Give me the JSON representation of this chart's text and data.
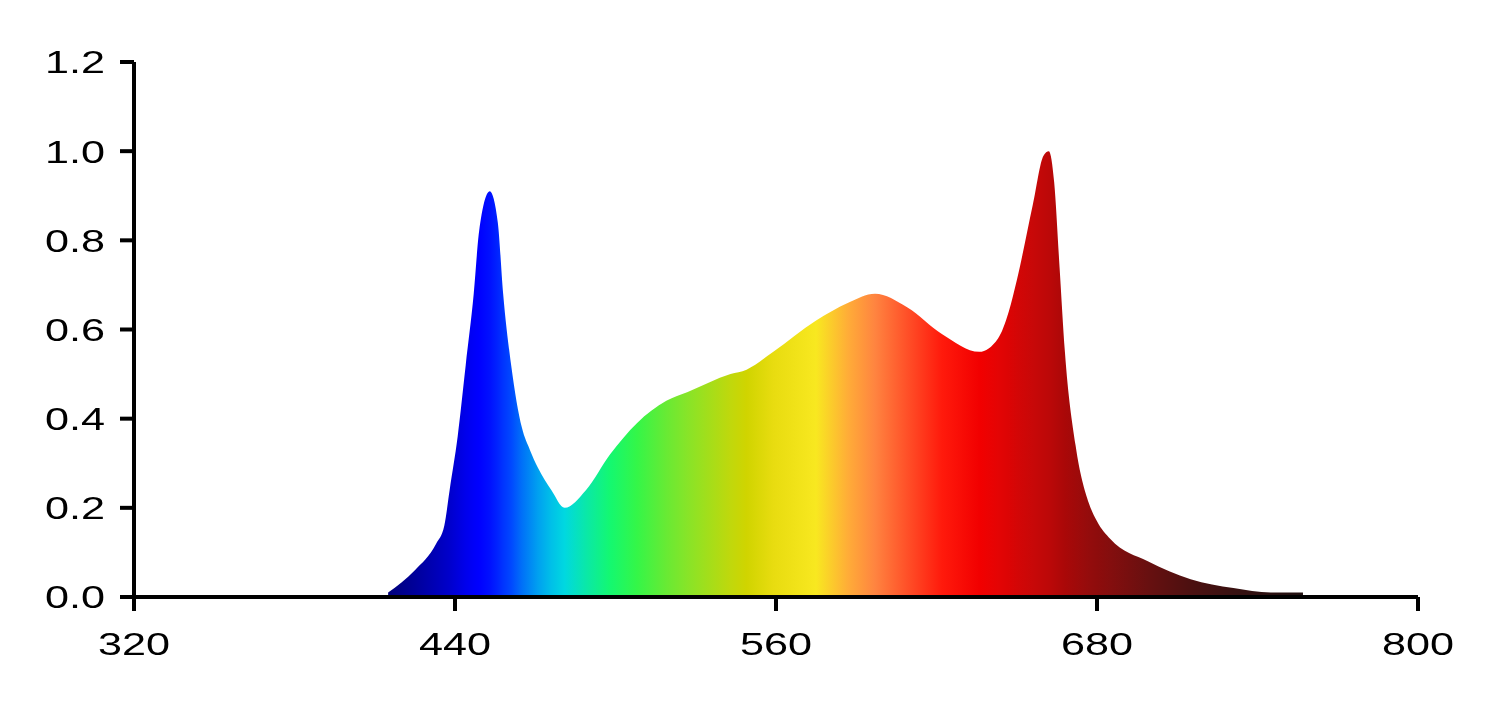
{
  "chart_data": {
    "type": "area",
    "x": [
      415,
      425,
      433,
      436,
      438,
      441,
      444,
      447,
      449,
      453,
      456,
      458,
      461,
      465,
      468,
      471,
      476,
      481,
      489,
      498,
      508,
      519,
      527,
      543,
      549,
      559,
      575,
      587,
      597,
      609,
      622,
      636,
      643,
      647,
      650,
      656,
      660,
      662,
      664,
      666,
      668,
      672,
      677,
      680,
      685,
      699,
      715,
      731,
      745,
      757
    ],
    "values": [
      0.01,
      0.06,
      0.12,
      0.16,
      0.24,
      0.36,
      0.52,
      0.68,
      0.82,
      0.91,
      0.84,
      0.68,
      0.52,
      0.38,
      0.33,
      0.29,
      0.24,
      0.2,
      0.24,
      0.32,
      0.39,
      0.44,
      0.46,
      0.5,
      0.51,
      0.55,
      0.62,
      0.66,
      0.68,
      0.65,
      0.59,
      0.55,
      0.58,
      0.64,
      0.71,
      0.88,
      0.99,
      1.0,
      0.93,
      0.74,
      0.55,
      0.34,
      0.21,
      0.17,
      0.13,
      0.08,
      0.04,
      0.02,
      0.01,
      0.01
    ],
    "colors": [
      "#00007a",
      "#00009a",
      "#0000b8",
      "#0000c4",
      "#0000cc",
      "#0000dc",
      "#0000ec",
      "#0000f8",
      "#0000ff",
      "#0010ff",
      "#0024ff",
      "#0034ff",
      "#0048ff",
      "#0070f8",
      "#0088f4",
      "#00a0f0",
      "#00c0e8",
      "#00d8e0",
      "#0ae8a8",
      "#14f870",
      "#34f648",
      "#68ea34",
      "#88e428",
      "#c0d80c",
      "#d0d400",
      "#e8dc10",
      "#f8e820",
      "#ffac38",
      "#ff8440",
      "#ff5028",
      "#ff1a0c",
      "#f20000",
      "#e40404",
      "#dc0404",
      "#d40606",
      "#c80808",
      "#c00808",
      "#bc0808",
      "#b60808",
      "#b00808",
      "#aa0808",
      "#a00a0a",
      "#940c0c",
      "#8e0c0c",
      "#840e0e",
      "#681010",
      "#4c1010",
      "#381010",
      "#2a1010",
      "#201010"
    ],
    "xlim": [
      320,
      800
    ],
    "xticks": [
      320,
      440,
      560,
      680,
      800
    ],
    "ylim": [
      0,
      1.2
    ],
    "yticks": [
      {
        "value": 0,
        "label": "0.0"
      },
      0.2,
      0.4,
      0.6,
      0.8,
      {
        "value": 1,
        "label": "1.0"
      },
      1.2
    ]
  }
}
